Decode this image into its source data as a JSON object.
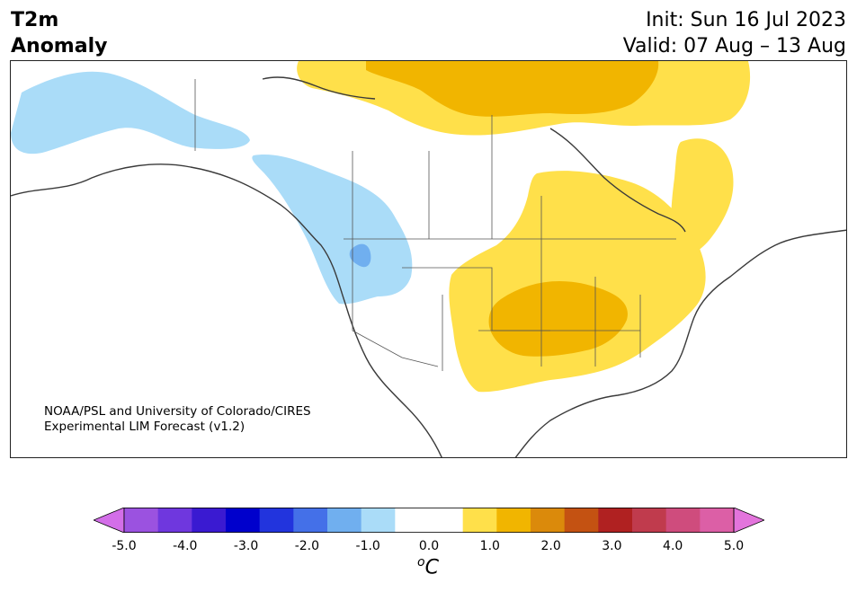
{
  "title": {
    "line1": "T2m",
    "line2": "Anomaly"
  },
  "init": {
    "line1": "Init: Sun 16 Jul 2023",
    "line2": "Valid: 07 Aug – 13 Aug"
  },
  "credit": {
    "line1": "NOAA/PSL and University of Colorado/CIRES",
    "line2": "Experimental LIM Forecast (v1.2)"
  },
  "map": {
    "region": "North America",
    "field": "2-m temperature anomaly",
    "colors": {
      "land_outline": "#3a3a3a",
      "state_lines": "#555555",
      "neutral": "#ffffff"
    }
  },
  "colorbar": {
    "ticks": [
      "-5.0",
      "-4.0",
      "-3.0",
      "-2.0",
      "-1.0",
      "0.0",
      "1.0",
      "2.0",
      "3.0",
      "4.0",
      "5.0"
    ],
    "unit_base": "C",
    "unit_sup": "o",
    "under_color": "#d36ee8",
    "over_color": "#e374dc",
    "colors": [
      "#d36ee8",
      "#9b52e0",
      "#6f37de",
      "#3a1ad1",
      "#0000cc",
      "#2234dd",
      "#4470e8",
      "#70afef",
      "#aadcf8",
      "#ffffff",
      "#ffffff",
      "#ffe04a",
      "#f1b500",
      "#db8a0b",
      "#c45212",
      "#b02121",
      "#c03b4d",
      "#cf4c7d",
      "#dc5fa6",
      "#e374dc"
    ]
  }
}
